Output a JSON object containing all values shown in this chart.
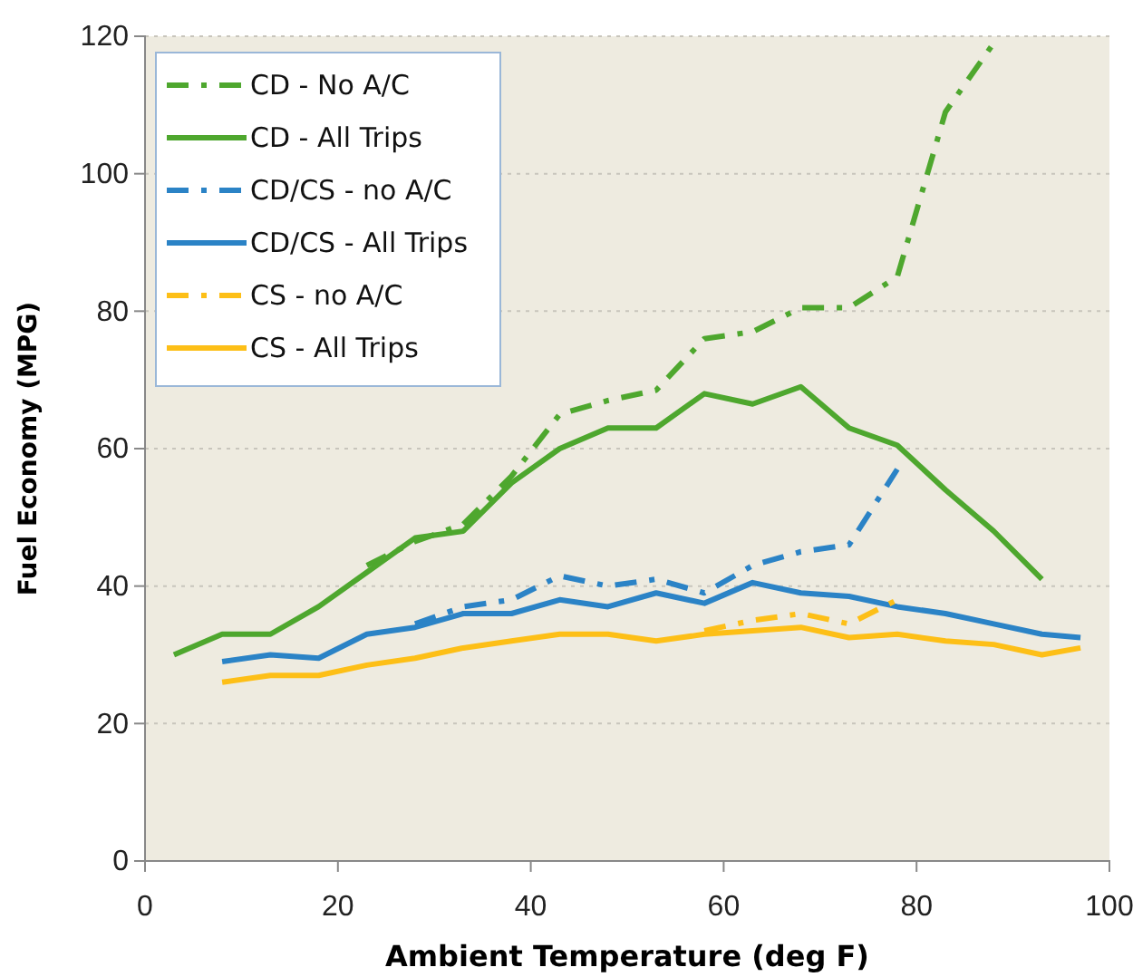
{
  "chart_data": {
    "type": "line",
    "xlabel": "Ambient Temperature (deg F)",
    "ylabel": "Fuel Economy (MPG)",
    "xlim": [
      0,
      100
    ],
    "xticks": [
      0,
      20,
      40,
      60,
      80,
      100
    ],
    "ylim": [
      0,
      120
    ],
    "yticks": [
      0,
      20,
      40,
      60,
      80,
      100,
      120
    ],
    "grid": "y",
    "legend": "top left",
    "series": [
      {
        "name": "CD - No A/C",
        "color": "#4ea72e",
        "line_style": "dashed",
        "x": [
          23,
          28,
          33,
          38,
          43,
          48,
          53,
          58,
          63,
          68,
          73,
          78,
          83,
          88
        ],
        "values": [
          43,
          46.5,
          49,
          56,
          65,
          67,
          68.5,
          76,
          77,
          80.5,
          80.5,
          85,
          109,
          119
        ]
      },
      {
        "name": "CD - All Trips",
        "color": "#4ea72e",
        "line_style": "solid",
        "x": [
          3,
          8,
          13,
          18,
          23,
          28,
          33,
          38,
          43,
          48,
          53,
          58,
          63,
          68,
          73,
          78,
          83,
          88,
          93
        ],
        "values": [
          30,
          33,
          33,
          37,
          42,
          47,
          48,
          55,
          60,
          63,
          63,
          68,
          66.5,
          69,
          63,
          60.5,
          54,
          48,
          41
        ]
      },
      {
        "name": "CD/CS - no A/C",
        "color": "#2b83c6",
        "line_style": "dashed",
        "x": [
          28,
          33,
          38,
          43,
          48,
          53,
          58,
          63,
          68,
          73,
          78
        ],
        "values": [
          34.5,
          37,
          38,
          41.5,
          40,
          41,
          39,
          43,
          45,
          46,
          57
        ]
      },
      {
        "name": "CD/CS - All Trips",
        "color": "#2b83c6",
        "line_style": "solid",
        "x": [
          8,
          13,
          18,
          23,
          28,
          33,
          38,
          43,
          48,
          53,
          58,
          63,
          68,
          73,
          78,
          83,
          88,
          93,
          97
        ],
        "values": [
          29,
          30,
          29.5,
          33,
          34,
          36,
          36,
          38,
          37,
          39,
          37.5,
          40.5,
          39,
          38.5,
          37,
          36,
          34.5,
          33,
          32.5
        ]
      },
      {
        "name": "CS - no A/C",
        "color": "#fdbf17",
        "line_style": "dashed",
        "x": [
          58,
          63,
          68,
          73,
          78
        ],
        "values": [
          33.5,
          35,
          36,
          34.5,
          38
        ]
      },
      {
        "name": "CS - All Trips",
        "color": "#fdbf17",
        "line_style": "solid",
        "x": [
          8,
          13,
          18,
          23,
          28,
          33,
          38,
          43,
          48,
          53,
          58,
          63,
          68,
          73,
          78,
          83,
          88,
          93,
          97
        ],
        "values": [
          26,
          27,
          27,
          28.5,
          29.5,
          31,
          32,
          33,
          33,
          32,
          33,
          33.5,
          34,
          32.5,
          33,
          32,
          31.5,
          30,
          31
        ]
      }
    ]
  }
}
